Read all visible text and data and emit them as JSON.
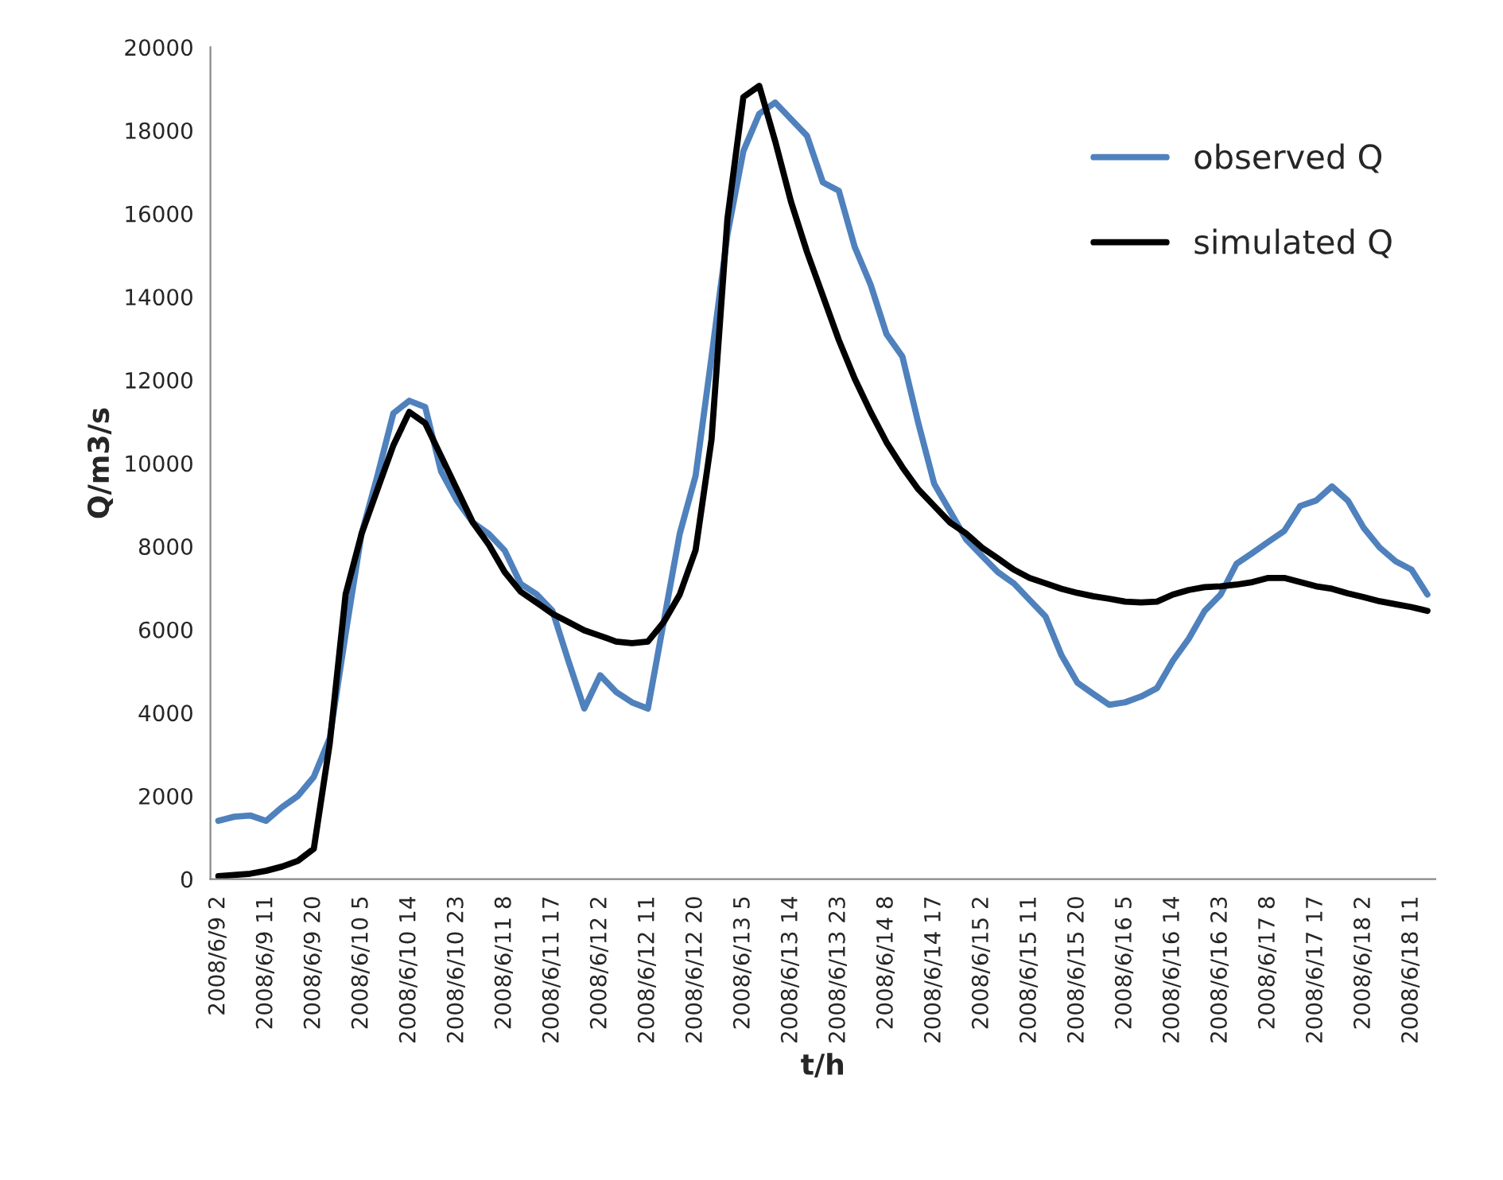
{
  "chart_data": {
    "type": "line",
    "xlabel": "t/h",
    "ylabel": "Q/m3/s",
    "categories": [
      "2008/6/9 2",
      null,
      null,
      "2008/6/9 11",
      null,
      null,
      "2008/6/9 20",
      null,
      null,
      "2008/6/10 5",
      null,
      null,
      "2008/6/10 14",
      null,
      null,
      "2008/6/10 23",
      null,
      null,
      "2008/6/11 8",
      null,
      null,
      "2008/6/11 17",
      null,
      null,
      "2008/6/12 2",
      null,
      null,
      "2008/6/12 11",
      null,
      null,
      "2008/6/12 20",
      null,
      null,
      "2008/6/13 5",
      null,
      null,
      "2008/6/13 14",
      null,
      null,
      "2008/6/13 23",
      null,
      null,
      "2008/6/14 8",
      null,
      null,
      "2008/6/14 17",
      null,
      null,
      "2008/6/15 2",
      null,
      null,
      "2008/6/15 11",
      null,
      null,
      "2008/6/15 20",
      null,
      null,
      "2008/6/16 5",
      null,
      null,
      "2008/6/16 14",
      null,
      null,
      "2008/6/16 23",
      null,
      null,
      "2008/6/17 8",
      null,
      null,
      "2008/6/17 17",
      null,
      null,
      "2008/6/18 2",
      null,
      null,
      "2008/6/18 11",
      null
    ],
    "series": [
      {
        "name": "observed Q",
        "color": "#4f81bd",
        "values": [
          1400,
          1500,
          1530,
          1400,
          1730,
          2000,
          2460,
          3390,
          5900,
          8300,
          9700,
          11200,
          11500,
          11350,
          9800,
          9100,
          8570,
          8300,
          7900,
          7100,
          6850,
          6450,
          5250,
          4100,
          4900,
          4500,
          4250,
          4100,
          6200,
          8300,
          9700,
          12550,
          15500,
          17500,
          18400,
          18670,
          18270,
          17870,
          16750,
          16550,
          15200,
          14290,
          13100,
          12560,
          10960,
          9500,
          8840,
          8170,
          7770,
          7380,
          7110,
          6710,
          6310,
          5380,
          4720,
          4450,
          4190,
          4250,
          4390,
          4590,
          5250,
          5780,
          6450,
          6840,
          7580,
          7840,
          8110,
          8370,
          8970,
          9100,
          9440,
          9100,
          8440,
          7970,
          7640,
          7440,
          6840
        ]
      },
      {
        "name": "simulated Q",
        "color": "#000000",
        "values": [
          70,
          100,
          130,
          200,
          300,
          440,
          730,
          3260,
          6850,
          8300,
          9370,
          10430,
          11230,
          10960,
          10170,
          9370,
          8570,
          8040,
          7380,
          6910,
          6650,
          6380,
          6180,
          5980,
          5850,
          5710,
          5670,
          5710,
          6180,
          6840,
          7910,
          10570,
          15880,
          18800,
          19070,
          17740,
          16280,
          15080,
          14020,
          12960,
          12030,
          11230,
          10500,
          9900,
          9370,
          8970,
          8570,
          8310,
          7970,
          7710,
          7440,
          7240,
          7110,
          6980,
          6880,
          6800,
          6740,
          6670,
          6650,
          6670,
          6840,
          6950,
          7020,
          7040,
          7080,
          7140,
          7240,
          7240,
          7140,
          7040,
          6980,
          6870,
          6780,
          6680,
          6610,
          6540,
          6450
        ]
      }
    ],
    "ylim": [
      0,
      20000
    ],
    "yticks": [
      0,
      2000,
      4000,
      6000,
      8000,
      10000,
      12000,
      14000,
      16000,
      18000,
      20000
    ],
    "grid": false,
    "legend": "top right"
  }
}
